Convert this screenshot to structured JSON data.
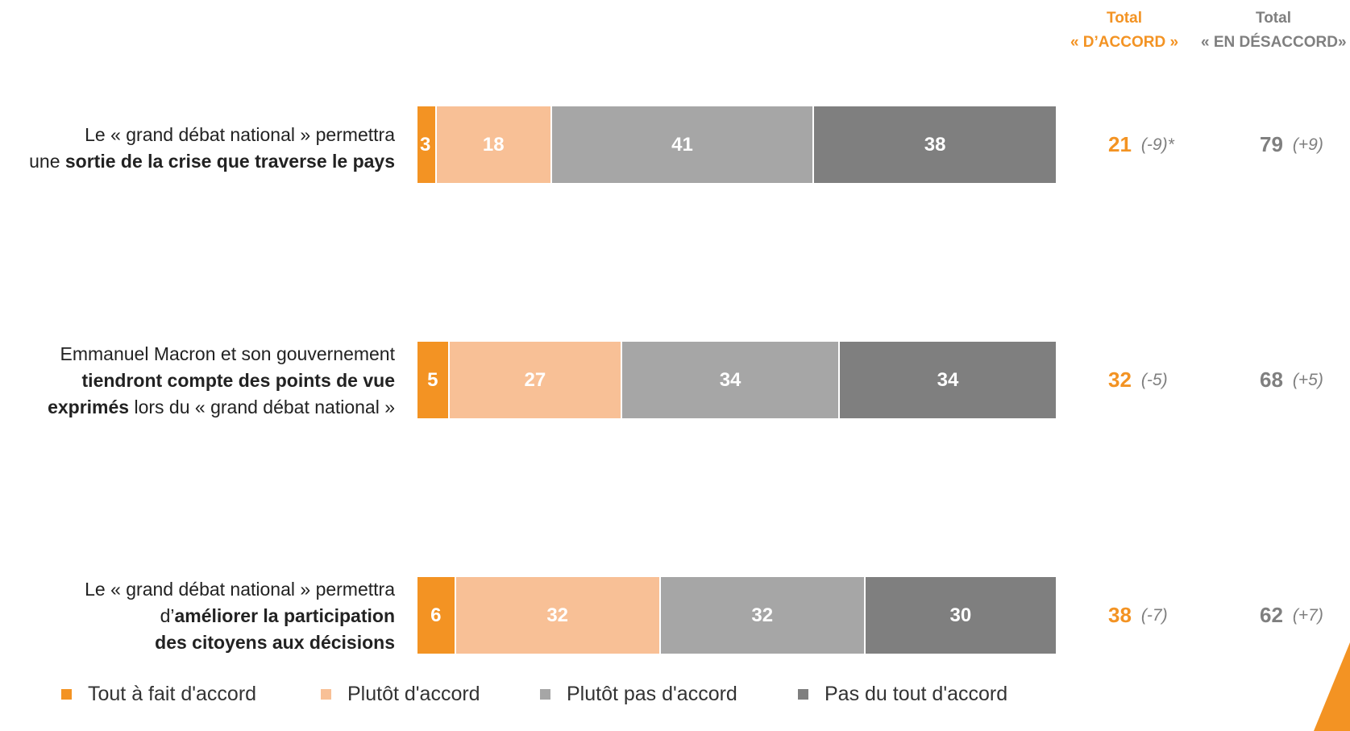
{
  "headers": {
    "accord_line1": "Total",
    "accord_line2": "« D’ACCORD »",
    "desaccord_line1": "Total",
    "desaccord_line2": "« EN DÉSACCORD»"
  },
  "colors": {
    "tout_a_fait": "#F39323",
    "plutot_accord": "#F8C096",
    "plutot_pas": "#A6A6A6",
    "pas_du_tout": "#7F7F7F",
    "accord_total": "#F39323",
    "desaccord_total": "#7F7F7F"
  },
  "rows": [
    {
      "label_parts": [
        {
          "text": "Le « grand débat national » permettra",
          "bold": false
        },
        {
          "text": "\n",
          "bold": false
        },
        {
          "text": "une ",
          "bold": false
        },
        {
          "text": "sortie de la crise que traverse le pays",
          "bold": true
        }
      ],
      "values": [
        "3",
        "18",
        "41",
        "38"
      ],
      "total_accord": "21",
      "total_accord_change": "(-9)*",
      "total_desaccord": "79",
      "total_desaccord_change": "(+9)"
    },
    {
      "label_parts": [
        {
          "text": "Emmanuel Macron et son gouvernement",
          "bold": false
        },
        {
          "text": "\n",
          "bold": false
        },
        {
          "text": "tiendront compte des points de vue",
          "bold": true
        },
        {
          "text": "\n",
          "bold": false
        },
        {
          "text": "exprimés",
          "bold": true
        },
        {
          "text": " lors du « grand débat national »",
          "bold": false
        }
      ],
      "values": [
        "5",
        "27",
        "34",
        "34"
      ],
      "total_accord": "32",
      "total_accord_change": "(-5)",
      "total_desaccord": "68",
      "total_desaccord_change": "(+5)"
    },
    {
      "label_parts": [
        {
          "text": "Le « grand débat national » permettra",
          "bold": false
        },
        {
          "text": "\n",
          "bold": false
        },
        {
          "text": "d’",
          "bold": false
        },
        {
          "text": "améliorer la participation",
          "bold": true
        },
        {
          "text": "\n",
          "bold": false
        },
        {
          "text": "des citoyens aux décisions",
          "bold": true
        }
      ],
      "values": [
        "6",
        "32",
        "32",
        "30"
      ],
      "total_accord": "38",
      "total_accord_change": "(-7)",
      "total_desaccord": "62",
      "total_desaccord_change": "(+7)"
    }
  ],
  "legend": [
    {
      "label": "Tout à fait d'accord",
      "color": "#F39323"
    },
    {
      "label": "Plutôt d'accord",
      "color": "#F8C096"
    },
    {
      "label": "Plutôt pas d'accord",
      "color": "#A6A6A6"
    },
    {
      "label": "Pas du tout d'accord",
      "color": "#7F7F7F"
    }
  ],
  "chart_data": {
    "type": "bar",
    "orientation": "horizontal",
    "stacked": true,
    "categories": [
      "Le « grand débat national » permettra une sortie de la crise que traverse le pays",
      "Emmanuel Macron et son gouvernement tiendront compte des points de vue exprimés lors du « grand débat national »",
      "Le « grand débat national » permettra d’améliorer la participation des citoyens aux décisions"
    ],
    "series": [
      {
        "name": "Tout à fait d'accord",
        "values": [
          3,
          5,
          6
        ]
      },
      {
        "name": "Plutôt d'accord",
        "values": [
          18,
          27,
          32
        ]
      },
      {
        "name": "Plutôt pas d'accord",
        "values": [
          41,
          34,
          32
        ]
      },
      {
        "name": "Pas du tout d'accord",
        "values": [
          38,
          34,
          30
        ]
      }
    ],
    "xlim": [
      0,
      100
    ],
    "grid": false,
    "legend_position": "bottom"
  }
}
